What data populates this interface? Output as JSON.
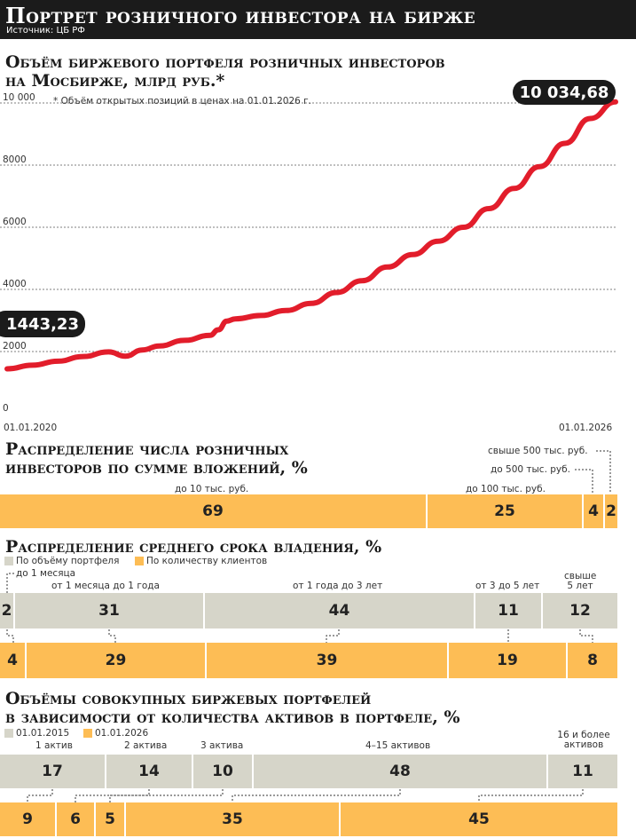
{
  "header": {
    "title": "Портрет розничного инвестора на бирже",
    "source": "Источник: ЦБ РФ"
  },
  "section1": {
    "title": "Объём биржевого портфеля розничных инвесторов\nна Мосбирже, млрд руб.*",
    "note": "* Объём открытых позиций в ценах на 01.01.2026 г."
  },
  "colors": {
    "line": "#e21d2b",
    "yellow": "#fdbd55",
    "grey": "#d6d5c9",
    "dark": "#1b1b1b"
  },
  "chart_data": {
    "type": "line",
    "title": "Объём биржевого портфеля розничных инвесторов на Мосбирже, млрд руб.*",
    "y_ticks": [
      "10 000",
      "8000",
      "6000",
      "4000",
      "2000",
      "0"
    ],
    "y_tick_values": [
      10000,
      8000,
      6000,
      4000,
      2000,
      0
    ],
    "ylim": [
      0,
      10000
    ],
    "x_labels": [
      "01.01.2020",
      "01.01.2026"
    ],
    "start_label": "1443,23",
    "end_label": "10 034,68",
    "grid": "horizontal",
    "series": [
      {
        "x": [
          "2020-01",
          "2020-04",
          "2020-07",
          "2020-10",
          "2021-01",
          "2021-03",
          "2021-05",
          "2021-07",
          "2021-10",
          "2022-01",
          "2022-02",
          "2022-03",
          "2022-04",
          "2022-07",
          "2022-10",
          "2023-01",
          "2023-04",
          "2023-07",
          "2023-10",
          "2024-01",
          "2024-04",
          "2024-07",
          "2024-10",
          "2025-01",
          "2025-04",
          "2025-07",
          "2025-10",
          "2026-01"
        ],
        "values": [
          1443.23,
          1560,
          1690,
          1840,
          1990,
          1850,
          2050,
          2180,
          2360,
          2520,
          2700,
          2980,
          3050,
          3160,
          3320,
          3550,
          3900,
          4280,
          4720,
          5120,
          5550,
          6000,
          6600,
          7250,
          7950,
          8700,
          9500,
          10034.68
        ]
      }
    ]
  },
  "section2": {
    "title": "Распределение числа розничных\nинвесторов по сумме вложений, %",
    "labels": [
      "до 10 тыс. руб.",
      "до 100 тыс. руб.",
      "до 500 тыс. руб.",
      "свыше 500 тыс. руб."
    ],
    "values": [
      69,
      25,
      4,
      2
    ]
  },
  "section3": {
    "title": "Распределение среднего срока владения, %",
    "legend": [
      "По объёму портфеля",
      "По количеству клиентов"
    ],
    "labels": [
      "до 1 месяца",
      "от 1 месяца до 1 года",
      "от 1 года до 3 лет",
      "от 3 до 5 лет",
      "свыше\n5 лет"
    ],
    "portfolio": [
      2,
      31,
      44,
      11,
      12
    ],
    "clients": [
      4,
      29,
      39,
      19,
      8
    ]
  },
  "section4": {
    "title": "Объёмы совокупных биржевых портфелей\nв зависимости от количества активов в портфеле, %",
    "legend": [
      "01.01.2015",
      "01.01.2026"
    ],
    "labels": [
      "1 актив",
      "2 актива",
      "3 актива",
      "4–15 активов",
      "16 и более\nактивов"
    ],
    "y2015": [
      17,
      14,
      10,
      48,
      11
    ],
    "y2026": [
      9,
      6,
      5,
      35,
      45
    ]
  }
}
